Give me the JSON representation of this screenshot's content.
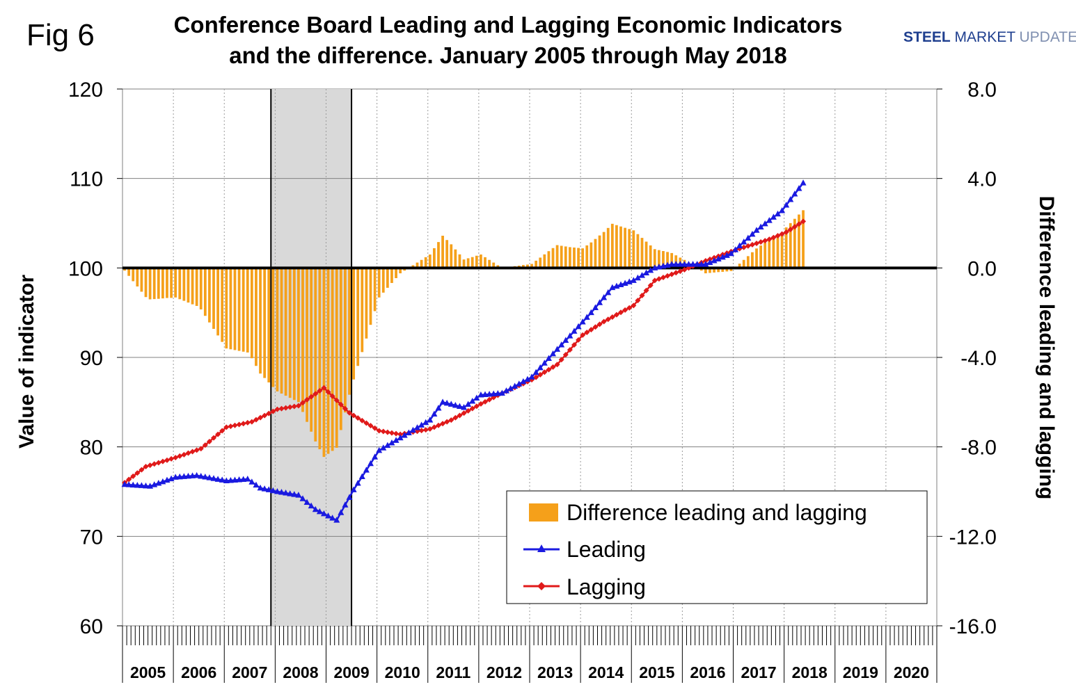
{
  "figure_label": "Fig 6",
  "brand": {
    "part1": "STEEL",
    "part2": " MARKET",
    "part3": " UPDATE"
  },
  "chart_data": {
    "type": "bar+line",
    "title_lines": [
      "Conference Board Leading and Lagging Economic Indicators",
      "and the difference. January 2005 through May 2018"
    ],
    "ylabel_left": "Value of indicator",
    "ylabel_right": "Difference leading and lagging",
    "y_left": {
      "min": 60,
      "max": 120,
      "ticks": [
        "120",
        "110",
        "100",
        "90",
        "80",
        "70",
        "60"
      ]
    },
    "y_right": {
      "min": -16,
      "max": 8,
      "ticks": [
        "8.0",
        "4.0",
        "0.0",
        "-4.0",
        "-8.0",
        "-12.0",
        "-16.0"
      ]
    },
    "years": [
      "2005",
      "2006",
      "2007",
      "2008",
      "2009",
      "2010",
      "2011",
      "2012",
      "2013",
      "2014",
      "2015",
      "2016",
      "2017",
      "2018",
      "2019",
      "2020"
    ],
    "recession": {
      "start": "2007-12",
      "end": "2009-06"
    },
    "grid": "horizontal and yearly vertical dotted",
    "legend": {
      "position": "bottom-right",
      "entries": [
        "Difference leading and lagging",
        "Leading",
        "Lagging"
      ]
    },
    "colors": {
      "difference": "#F5A01A",
      "leading": "#1a1ae0",
      "lagging": "#e01a1a",
      "recession": "#d9d9d9"
    },
    "leading_anchors": [
      [
        "2005-01",
        75.8
      ],
      [
        "2005-07",
        75.6
      ],
      [
        "2006-01",
        76.6
      ],
      [
        "2006-06",
        76.8
      ],
      [
        "2007-01",
        76.2
      ],
      [
        "2007-06",
        76.4
      ],
      [
        "2007-09",
        75.4
      ],
      [
        "2008-01",
        75.0
      ],
      [
        "2008-06",
        74.6
      ],
      [
        "2008-10",
        73.0
      ],
      [
        "2009-03",
        71.8
      ],
      [
        "2009-07",
        75.2
      ],
      [
        "2010-01",
        79.6
      ],
      [
        "2010-06",
        81.0
      ],
      [
        "2011-01",
        83.0
      ],
      [
        "2011-04",
        85.0
      ],
      [
        "2011-09",
        84.4
      ],
      [
        "2012-01",
        85.8
      ],
      [
        "2012-06",
        86.0
      ],
      [
        "2013-01",
        87.8
      ],
      [
        "2013-06",
        90.4
      ],
      [
        "2013-10",
        92.4
      ],
      [
        "2014-03",
        95.0
      ],
      [
        "2014-08",
        97.8
      ],
      [
        "2015-01",
        98.6
      ],
      [
        "2015-06",
        100.0
      ],
      [
        "2015-10",
        100.4
      ],
      [
        "2016-06",
        100.4
      ],
      [
        "2016-12",
        101.6
      ],
      [
        "2017-06",
        104.2
      ],
      [
        "2017-12",
        106.4
      ],
      [
        "2018-05",
        109.5
      ]
    ],
    "lagging_anchors": [
      [
        "2005-01",
        76.0
      ],
      [
        "2005-06",
        77.8
      ],
      [
        "2006-01",
        78.8
      ],
      [
        "2006-07",
        79.8
      ],
      [
        "2007-01",
        82.2
      ],
      [
        "2007-07",
        82.8
      ],
      [
        "2008-01",
        84.2
      ],
      [
        "2008-06",
        84.6
      ],
      [
        "2008-12",
        86.6
      ],
      [
        "2009-06",
        83.8
      ],
      [
        "2010-01",
        81.8
      ],
      [
        "2010-06",
        81.4
      ],
      [
        "2011-01",
        82.0
      ],
      [
        "2011-06",
        83.0
      ],
      [
        "2012-01",
        84.8
      ],
      [
        "2012-06",
        86.0
      ],
      [
        "2013-01",
        87.5
      ],
      [
        "2013-07",
        89.2
      ],
      [
        "2014-01",
        92.5
      ],
      [
        "2014-06",
        94.0
      ],
      [
        "2015-01",
        95.8
      ],
      [
        "2015-06",
        98.6
      ],
      [
        "2016-01",
        99.8
      ],
      [
        "2016-06",
        100.8
      ],
      [
        "2017-01",
        102.0
      ],
      [
        "2017-09",
        103.2
      ],
      [
        "2018-01",
        104.0
      ],
      [
        "2018-05",
        105.2
      ]
    ]
  }
}
